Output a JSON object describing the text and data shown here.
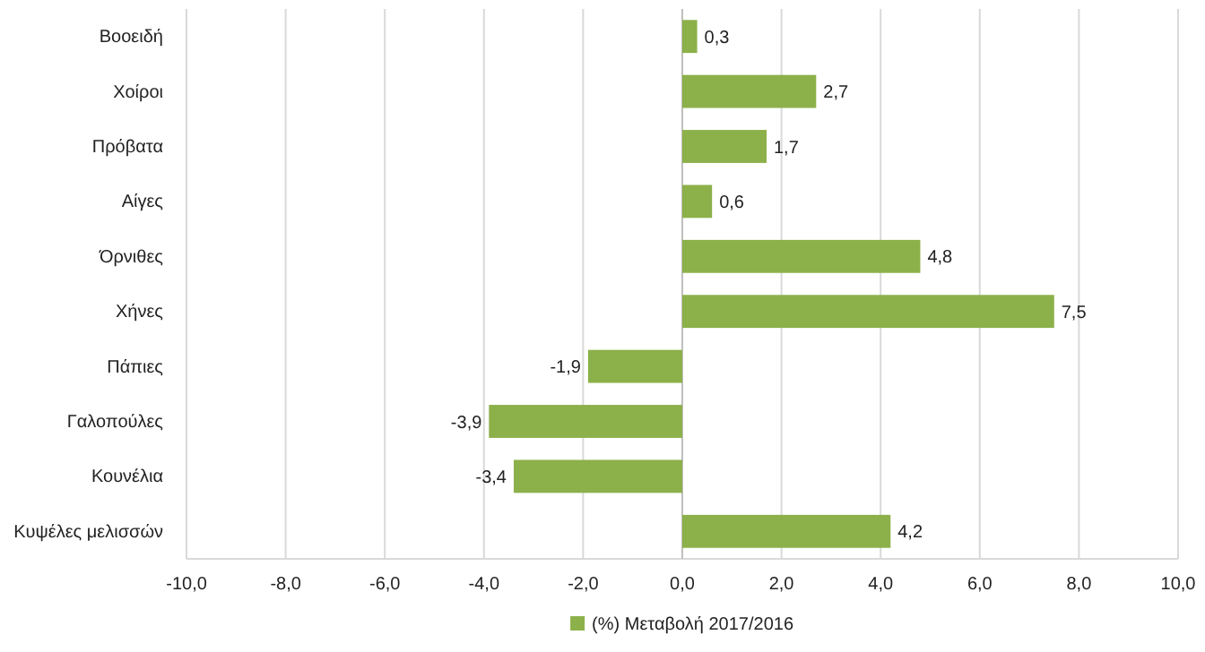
{
  "chart_data": {
    "type": "bar",
    "orientation": "horizontal",
    "categories": [
      "Βοοειδή",
      "Χοίροι",
      "Πρόβατα",
      "Αίγες",
      "Όρνιθες",
      "Χήνες",
      "Πάπιες",
      "Γαλοπούλες",
      "Κουνέλια",
      "Κυψέλες μελισσών"
    ],
    "series": [
      {
        "name": "(%) Μεταβολή 2017/2016",
        "color": "#8cb04a",
        "values": [
          0.3,
          2.7,
          1.7,
          0.6,
          4.8,
          7.5,
          -1.9,
          -3.9,
          -3.4,
          4.2
        ],
        "value_labels": [
          "0,3",
          "2,7",
          "1,7",
          "0,6",
          "4,8",
          "7,5",
          "-1,9",
          "-3,9",
          "-3,4",
          "4,2"
        ]
      }
    ],
    "xlim": [
      -10,
      10
    ],
    "xticks": [
      {
        "value": -10,
        "label": "-10,0"
      },
      {
        "value": -8,
        "label": "-8,0"
      },
      {
        "value": -6,
        "label": "-6,0"
      },
      {
        "value": -4,
        "label": "-4,0"
      },
      {
        "value": -2,
        "label": "-2,0"
      },
      {
        "value": 0,
        "label": "0,0"
      },
      {
        "value": 2,
        "label": "2,0"
      },
      {
        "value": 4,
        "label": "4,0"
      },
      {
        "value": 6,
        "label": "6,0"
      },
      {
        "value": 8,
        "label": "8,0"
      },
      {
        "value": 10,
        "label": "10,0"
      }
    ],
    "grid": "x",
    "legend": "bottom"
  }
}
